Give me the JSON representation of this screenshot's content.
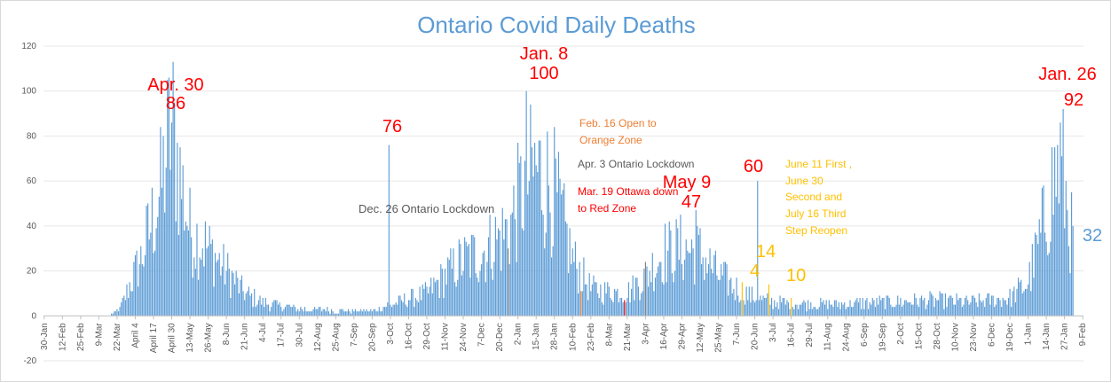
{
  "chart_data": {
    "type": "bar",
    "title": "Ontario Covid Daily Deaths",
    "ylim": [
      -20,
      120
    ],
    "yticks": [
      -20,
      0,
      20,
      40,
      60,
      80,
      100,
      120
    ],
    "start_date": "2020-01-30",
    "x_tick_labels": [
      "30-Jan",
      "12-Feb",
      "25-Feb",
      "9-Mar",
      "22-Mar",
      "April 4",
      "April 17",
      "April 30",
      "13-May",
      "26-May",
      "8-Jun",
      "21-Jun",
      "4-Jul",
      "17-Jul",
      "30-Jul",
      "12-Aug",
      "25-Aug",
      "7-Sep",
      "20-Sep",
      "3-Oct",
      "16-Oct",
      "29-Oct",
      "11-Nov",
      "24-Nov",
      "7-Dec",
      "20-Dec",
      "2-Jan",
      "15-Jan",
      "28-Jan",
      "10-Feb",
      "23-Feb",
      "8-Mar",
      "21-Mar",
      "3-Apr",
      "16-Apr",
      "29-Apr",
      "12-May",
      "25-May",
      "7-Jun",
      "20-Jun",
      "3-Jul",
      "16-Jul",
      "29-Jul",
      "11-Aug",
      "24-Aug",
      "6-Sep",
      "19-Sep",
      "2-Oct",
      "15-Oct",
      "28-Oct",
      "10-Nov",
      "23-Nov",
      "6-Dec",
      "19-Dec",
      "1-Jan",
      "14-Jan",
      "27-Jan",
      "9-Feb"
    ],
    "anchors": [
      {
        "date": "2020-01-30",
        "value": 0
      },
      {
        "date": "2020-03-16",
        "value": 0
      },
      {
        "date": "2020-03-24",
        "value": 3
      },
      {
        "date": "2020-04-01",
        "value": 15
      },
      {
        "date": "2020-04-08",
        "value": 25
      },
      {
        "date": "2020-04-15",
        "value": 40
      },
      {
        "date": "2020-04-22",
        "value": 55
      },
      {
        "date": "2020-04-30",
        "value": 86
      },
      {
        "date": "2020-05-06",
        "value": 62
      },
      {
        "date": "2020-05-13",
        "value": 38
      },
      {
        "date": "2020-05-26",
        "value": 30
      },
      {
        "date": "2020-06-08",
        "value": 20
      },
      {
        "date": "2020-06-21",
        "value": 10
      },
      {
        "date": "2020-07-04",
        "value": 6
      },
      {
        "date": "2020-07-30",
        "value": 3
      },
      {
        "date": "2020-09-20",
        "value": 2
      },
      {
        "date": "2020-10-03",
        "value": 5
      },
      {
        "date": "2020-10-29",
        "value": 10
      },
      {
        "date": "2020-11-11",
        "value": 18
      },
      {
        "date": "2020-11-24",
        "value": 25
      },
      {
        "date": "2020-12-07",
        "value": 28
      },
      {
        "date": "2020-12-26",
        "value": 38
      },
      {
        "date": "2021-01-08",
        "value": 60
      },
      {
        "date": "2021-01-15",
        "value": 65
      },
      {
        "date": "2021-01-28",
        "value": 55
      },
      {
        "date": "2021-02-10",
        "value": 25
      },
      {
        "date": "2021-02-23",
        "value": 12
      },
      {
        "date": "2021-03-21",
        "value": 10
      },
      {
        "date": "2021-04-03",
        "value": 18
      },
      {
        "date": "2021-04-16",
        "value": 28
      },
      {
        "date": "2021-04-29",
        "value": 30
      },
      {
        "date": "2021-05-12",
        "value": 28
      },
      {
        "date": "2021-05-25",
        "value": 18
      },
      {
        "date": "2021-06-07",
        "value": 12
      },
      {
        "date": "2021-06-20",
        "value": 8
      },
      {
        "date": "2021-07-03",
        "value": 6
      },
      {
        "date": "2021-08-11",
        "value": 5
      },
      {
        "date": "2021-09-19",
        "value": 6
      },
      {
        "date": "2021-10-28",
        "value": 7
      },
      {
        "date": "2021-11-23",
        "value": 6
      },
      {
        "date": "2021-12-19",
        "value": 8
      },
      {
        "date": "2022-01-01",
        "value": 15
      },
      {
        "date": "2022-01-10",
        "value": 35
      },
      {
        "date": "2022-01-17",
        "value": 55
      },
      {
        "date": "2022-01-24",
        "value": 68
      },
      {
        "date": "2022-01-31",
        "value": 40
      },
      {
        "date": "2022-02-02",
        "value": 32
      }
    ],
    "peaks": [
      {
        "date": "2020-04-30",
        "value": 86
      },
      {
        "date": "2020-10-02",
        "value": 76
      },
      {
        "date": "2021-01-08",
        "value": 100
      },
      {
        "date": "2021-05-09",
        "value": 47
      },
      {
        "date": "2021-06-22",
        "value": 60
      },
      {
        "date": "2021-06-30",
        "value": 14
      },
      {
        "date": "2022-01-26",
        "value": 92
      }
    ],
    "highlight_bars": [
      {
        "date": "2020-12-26",
        "color": "#808080"
      },
      {
        "date": "2021-02-16",
        "color": "#ed7d31"
      },
      {
        "date": "2021-03-19",
        "color": "#ff0000"
      },
      {
        "date": "2021-04-03",
        "color": "#808080"
      },
      {
        "date": "2021-06-11",
        "color": "#ffc000"
      },
      {
        "date": "2021-06-30",
        "color": "#ffc000"
      },
      {
        "date": "2021-07-16",
        "color": "#ffc000"
      }
    ],
    "annotations": [
      {
        "text": "Apr. 30",
        "color": "#ff0000",
        "size": 20
      },
      {
        "text": "86",
        "color": "#ff0000",
        "size": 20
      },
      {
        "text": "76",
        "color": "#ff0000",
        "size": 20
      },
      {
        "text": "Dec. 26 Ontario Lockdown",
        "color": "#595959",
        "size": 13
      },
      {
        "text": "Jan. 8",
        "color": "#ff0000",
        "size": 20
      },
      {
        "text": "100",
        "color": "#ff0000",
        "size": 20
      },
      {
        "text": "Feb. 16 Open to",
        "color": "#ed7d31",
        "size": 12
      },
      {
        "text": "Orange Zone",
        "color": "#ed7d31",
        "size": 12
      },
      {
        "text": "Apr. 3 Ontario Lockdown",
        "color": "#595959",
        "size": 12
      },
      {
        "text": "Mar. 19 Ottawa down",
        "color": "#ff0000",
        "size": 12
      },
      {
        "text": "to Red Zone",
        "color": "#ff0000",
        "size": 12
      },
      {
        "text": "May 9",
        "color": "#ff0000",
        "size": 20
      },
      {
        "text": "47",
        "color": "#ff0000",
        "size": 20
      },
      {
        "text": "60",
        "color": "#ff0000",
        "size": 20
      },
      {
        "text": "June 11 First ,",
        "color": "#ffc000",
        "size": 12
      },
      {
        "text": "June 30",
        "color": "#ffc000",
        "size": 12
      },
      {
        "text": "Second and",
        "color": "#ffc000",
        "size": 12
      },
      {
        "text": "July 16 Third",
        "color": "#ffc000",
        "size": 12
      },
      {
        "text": "Step Reopen",
        "color": "#ffc000",
        "size": 12
      },
      {
        "text": "14",
        "color": "#ffc000",
        "size": 20
      },
      {
        "text": "4",
        "color": "#ffc000",
        "size": 20
      },
      {
        "text": "10",
        "color": "#ffc000",
        "size": 20
      },
      {
        "text": "Jan. 26",
        "color": "#ff0000",
        "size": 20
      },
      {
        "text": "92",
        "color": "#ff0000",
        "size": 20
      },
      {
        "text": "32",
        "color": "#5b9bd5",
        "size": 20
      }
    ],
    "bar_color": "#5b9bd5",
    "grid": true
  }
}
